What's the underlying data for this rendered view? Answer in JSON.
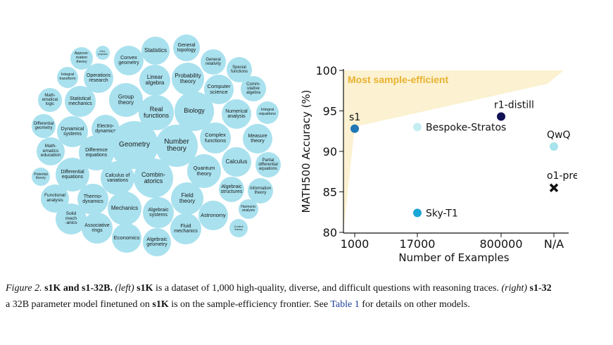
{
  "bubbles": [
    {
      "label": "Statistics",
      "fs": 8
    },
    {
      "label": "General\ntopology",
      "fs": 7
    },
    {
      "label": "Approxi-\nmation\ntheory",
      "fs": 5.5
    },
    {
      "label": "Geo-\nphysics",
      "fs": 4
    },
    {
      "label": "Convex\ngeometry",
      "fs": 7
    },
    {
      "label": "General\nrelativity",
      "fs": 6
    },
    {
      "label": "Special\nfunctions",
      "fs": 6
    },
    {
      "label": "Integral\ntransform",
      "fs": 5.5
    },
    {
      "label": "Operations\nresearch",
      "fs": 7
    },
    {
      "label": "Linear\nalgebra",
      "fs": 8
    },
    {
      "label": "Probability\ntheory",
      "fs": 8
    },
    {
      "label": "Computer\nscience",
      "fs": 7.5
    },
    {
      "label": "Comm-\nutative\nalgebra",
      "fs": 6
    },
    {
      "label": "Math-\nematical\nlogic",
      "fs": 6
    },
    {
      "label": "Statistical\nmechanics",
      "fs": 7
    },
    {
      "label": "Group\ntheory",
      "fs": 8
    },
    {
      "label": "Real\nfunctions",
      "fs": 9
    },
    {
      "label": "Biology",
      "fs": 9
    },
    {
      "label": "Numerical\nanalysis",
      "fs": 7
    },
    {
      "label": "Integral\nequations",
      "fs": 5.5
    },
    {
      "label": "Differential\ngeometry",
      "fs": 6
    },
    {
      "label": "Dynamical\nsystems",
      "fs": 7
    },
    {
      "label": "Electro-\ndynamics",
      "fs": 7
    },
    {
      "label": "Complex\nfunctions",
      "fs": 7.5
    },
    {
      "label": "Measure\ntheory",
      "fs": 7
    },
    {
      "label": "Math-\nematics\neducation",
      "fs": 6.5
    },
    {
      "label": "Difference\nequations",
      "fs": 7
    },
    {
      "label": "Geometry",
      "fs": 10
    },
    {
      "label": "Number\ntheory",
      "fs": 10
    },
    {
      "label": "Calculus",
      "fs": 8
    },
    {
      "label": "Partial\ndifferential\nequations",
      "fs": 6
    },
    {
      "label": "Potential\ntheory",
      "fs": 5
    },
    {
      "label": "Differential\nequations",
      "fs": 7
    },
    {
      "label": "Calculus of\nvariations",
      "fs": 7
    },
    {
      "label": "Combin-\natorics",
      "fs": 9
    },
    {
      "label": "Quantum\ntheory",
      "fs": 7.5
    },
    {
      "label": "Algebraic\nstructures",
      "fs": 7
    },
    {
      "label": "Information\ntheory",
      "fs": 6
    },
    {
      "label": "Functional\nanalysis",
      "fs": 6.5
    },
    {
      "label": "Thermo-\ndynamics",
      "fs": 7
    },
    {
      "label": "Field\ntheory",
      "fs": 8
    },
    {
      "label": "Harmonic\nanalysis",
      "fs": 5
    },
    {
      "label": "Solid\nmech\n-anics",
      "fs": 6.5
    },
    {
      "label": "Mechanics",
      "fs": 8
    },
    {
      "label": "Algebraic\nsystems",
      "fs": 7
    },
    {
      "label": "Astronomy",
      "fs": 7.5
    },
    {
      "label": "Control\ntheory",
      "fs": 4
    },
    {
      "label": "Associative\nrings",
      "fs": 7
    },
    {
      "label": "Fluid\nmechanics",
      "fs": 7
    },
    {
      "label": "Economics",
      "fs": 7.5
    },
    {
      "label": "Algebraic\ngeometry",
      "fs": 7
    }
  ],
  "chart_data": {
    "type": "scatter",
    "xlabel": "Number of Examples",
    "ylabel": "MATH500 Accuracy (%)",
    "categories": [
      "1000",
      "17000",
      "800000",
      "N/A"
    ],
    "yticks": [
      80,
      85,
      90,
      95,
      100
    ],
    "ylim": [
      80,
      100
    ],
    "points": [
      {
        "name": "s1",
        "x": "1000",
        "y": 92.8,
        "color": "#1f77b4",
        "marker": "circle"
      },
      {
        "name": "Bespoke-Stratos",
        "x": "17000",
        "y": 93.0,
        "color": "#c4eef2",
        "marker": "circle"
      },
      {
        "name": "r1-distill",
        "x": "800000",
        "y": 94.3,
        "color": "#111155",
        "marker": "circle"
      },
      {
        "name": "QwQ",
        "x": "N/A",
        "y": 90.6,
        "color": "#a6e3ec",
        "marker": "circle"
      },
      {
        "name": "o1-preview",
        "x": "N/A",
        "y": 85.5,
        "color": "#111111",
        "marker": "x"
      },
      {
        "name": "Sky-T1",
        "x": "17000",
        "y": 82.4,
        "color": "#1aa6d6",
        "marker": "circle"
      }
    ],
    "annotation": "Most sample-efficient",
    "region_color": "#fbeec8",
    "annotation_color": "#e8b230"
  },
  "caption": {
    "fig_label": "Figure 2.",
    "title": "s1K and s1-32B.",
    "left_tag": "(left)",
    "s1k_1": "s1K",
    "text1": " is a dataset of 1,000 high-quality, diverse, and difficult questions with reasoning traces. ",
    "right_tag": "(right)",
    "s1_32": "s1-32",
    "text2": "a 32B parameter model finetuned on ",
    "s1k_2": "s1K",
    "text3": " is on the sample-efficiency frontier. See ",
    "table_link": "Table 1",
    "text4": " for details on other models."
  }
}
